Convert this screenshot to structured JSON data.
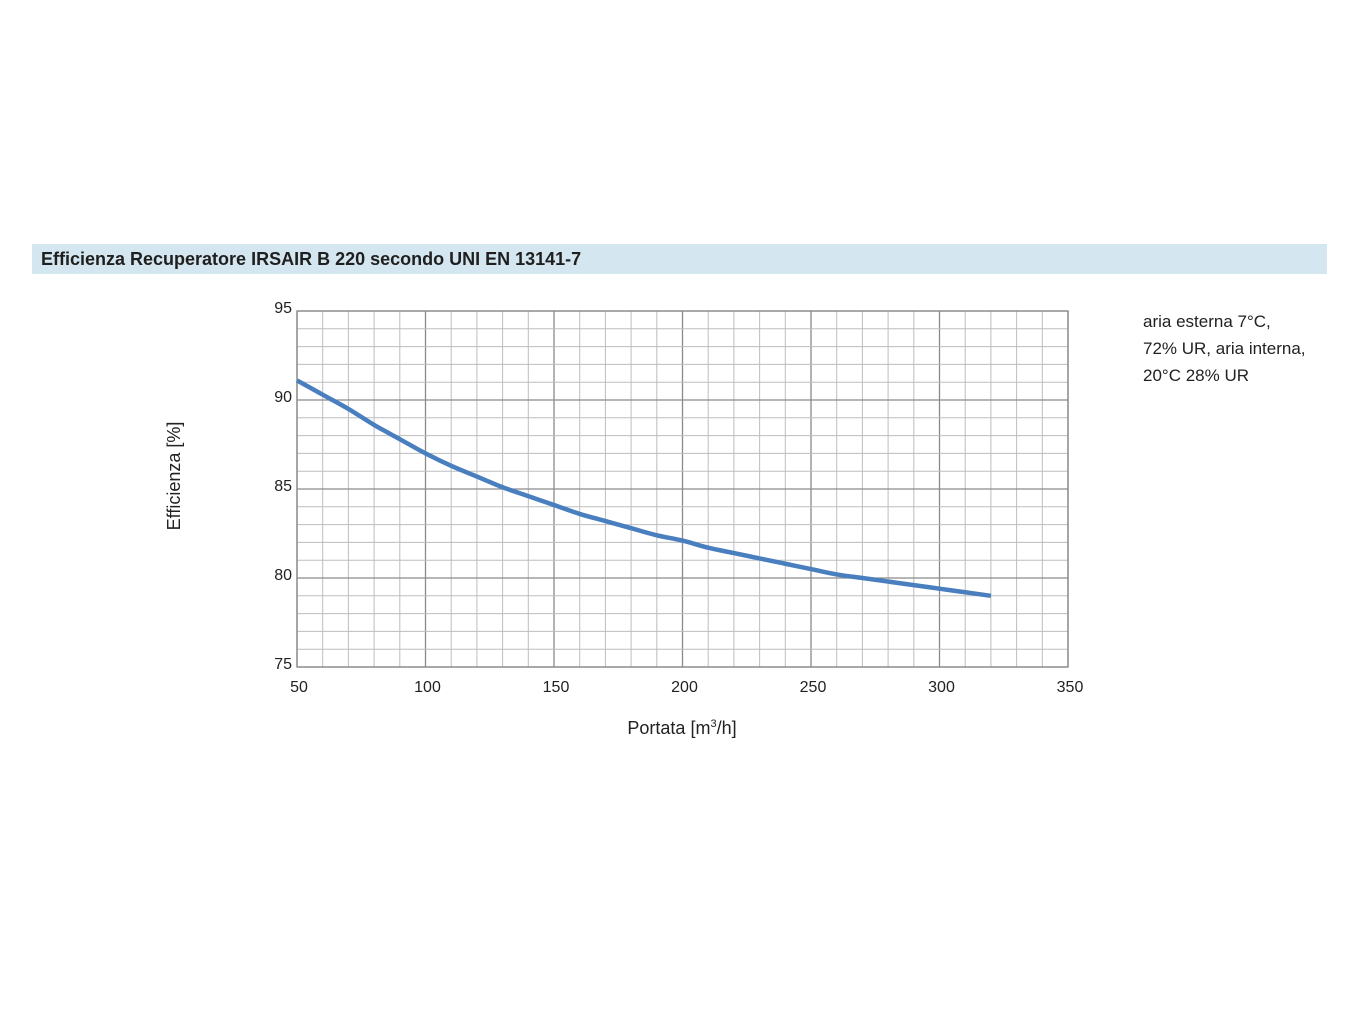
{
  "title": "Efficienza Recuperatore IRSAIR B 220 secondo UNI EN 13141-7",
  "note": [
    "aria esterna 7°C,",
    "72% UR, aria interna,",
    "20°C 28% UR"
  ],
  "colors": {
    "title_bar": "#d4e6ef",
    "series": "#4a7fbf",
    "grid": "#bdbdbd",
    "grid_major": "#8a8a8a"
  },
  "chart_data": {
    "type": "line",
    "xlabel_main": "Portata [m",
    "xlabel_sup": "3",
    "xlabel_end": "/h]",
    "ylabel": "Efficienza [%]",
    "xlim": [
      50,
      350
    ],
    "ylim": [
      75,
      95
    ],
    "x_ticks": [
      "50",
      "100",
      "150",
      "200",
      "250",
      "300",
      "350"
    ],
    "y_ticks": [
      "75",
      "80",
      "85",
      "90",
      "95"
    ],
    "x_minor_step": 10,
    "y_minor_step": 1,
    "grid": true,
    "series": [
      {
        "x": [
          50,
          60,
          70,
          80,
          90,
          100,
          110,
          120,
          130,
          140,
          150,
          160,
          170,
          180,
          190,
          200,
          210,
          220,
          230,
          240,
          250,
          260,
          270,
          280,
          290,
          300,
          310,
          320
        ],
        "y": [
          91.1,
          90.3,
          89.5,
          88.6,
          87.8,
          87.0,
          86.3,
          85.7,
          85.1,
          84.6,
          84.1,
          83.6,
          83.2,
          82.8,
          82.4,
          82.1,
          81.7,
          81.4,
          81.1,
          80.8,
          80.5,
          80.2,
          80.0,
          79.8,
          79.6,
          79.4,
          79.2,
          79.0
        ]
      }
    ]
  }
}
